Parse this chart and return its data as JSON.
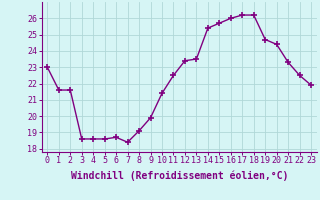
{
  "x": [
    0,
    1,
    2,
    3,
    4,
    5,
    6,
    7,
    8,
    9,
    10,
    11,
    12,
    13,
    14,
    15,
    16,
    17,
    18,
    19,
    20,
    21,
    22,
    23
  ],
  "y": [
    23.0,
    21.6,
    21.6,
    18.6,
    18.6,
    18.6,
    18.7,
    18.4,
    19.1,
    19.9,
    21.4,
    22.5,
    23.4,
    23.5,
    25.4,
    25.7,
    26.0,
    26.2,
    26.2,
    24.7,
    24.4,
    23.3,
    22.5,
    21.9
  ],
  "line_color": "#800080",
  "marker": "+",
  "marker_size": 4,
  "linewidth": 1.0,
  "bg_color": "#d6f5f5",
  "grid_color": "#b0d8d8",
  "xlabel": "Windchill (Refroidissement éolien,°C)",
  "xlabel_fontsize": 7,
  "tick_fontsize": 6,
  "ylim": [
    17.8,
    27.0
  ],
  "yticks": [
    18,
    19,
    20,
    21,
    22,
    23,
    24,
    25,
    26
  ],
  "xticks": [
    0,
    1,
    2,
    3,
    4,
    5,
    6,
    7,
    8,
    9,
    10,
    11,
    12,
    13,
    14,
    15,
    16,
    17,
    18,
    19,
    20,
    21,
    22,
    23
  ]
}
